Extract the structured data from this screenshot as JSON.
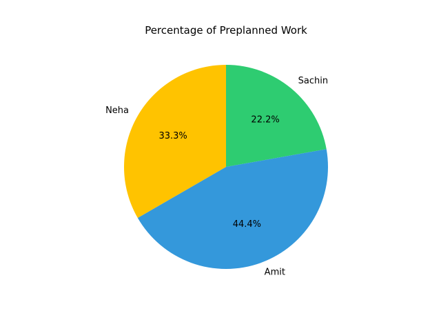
{
  "chart_data": {
    "type": "pie",
    "title": "Percentage of Preplanned Work",
    "slices": [
      {
        "label": "Sachin",
        "value": 22.2,
        "display": "22.2%",
        "color": "#2ecc71"
      },
      {
        "label": "Amit",
        "value": 44.4,
        "display": "44.4%",
        "color": "#3498db"
      },
      {
        "label": "Neha",
        "value": 33.3,
        "display": "33.3%",
        "color": "#ffc300"
      }
    ],
    "start_angle_deg": 90,
    "direction": "clockwise",
    "legend": "none"
  }
}
